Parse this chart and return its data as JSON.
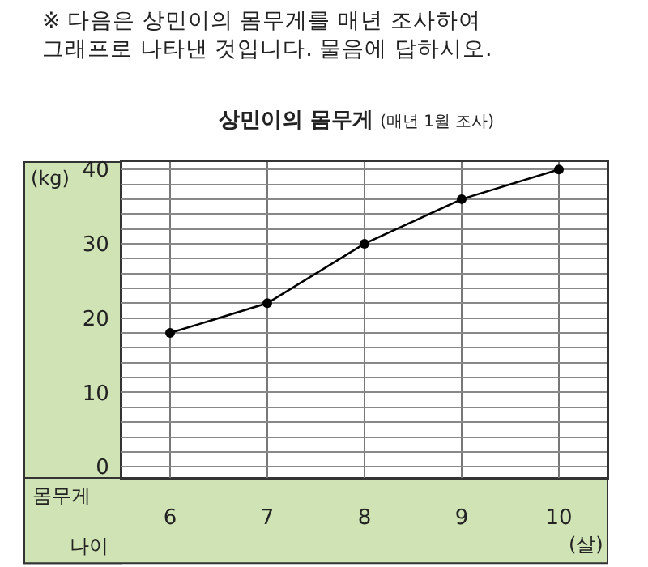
{
  "chart_data": {
    "type": "line",
    "title": "상민이의 몸무게",
    "subtitle": "(매년 1월 조사)",
    "xlabel": "나이",
    "ylabel": "몸무게",
    "annotations": [
      "※ 다음은 상민이의 몸무게를 매년 조사하여 그래프로 나타낸 것입니다. 물음에 답하시오.",
      "(kg)",
      "(살)"
    ],
    "categories": [
      "6",
      "7",
      "8",
      "9",
      "10"
    ],
    "series": [
      {
        "color": "#000000",
        "values": [
          18,
          22,
          30,
          36,
          40
        ]
      }
    ],
    "ylim": [
      -1.5,
      41
    ],
    "yticks": [
      0,
      {
        "value": 2,
        "label": null
      },
      {
        "value": 4,
        "label": null
      },
      {
        "value": 6,
        "label": null
      },
      {
        "value": 8,
        "label": null
      },
      10,
      {
        "value": 12,
        "label": null
      },
      {
        "value": 14,
        "label": null
      },
      {
        "value": 16,
        "label": null
      },
      {
        "value": 18,
        "label": null
      },
      20,
      {
        "value": 22,
        "label": null
      },
      {
        "value": 24,
        "label": null
      },
      {
        "value": 26,
        "label": null
      },
      {
        "value": 28,
        "label": null
      },
      30,
      {
        "value": 32,
        "label": null
      },
      {
        "value": 34,
        "label": null
      },
      {
        "value": 36,
        "label": null
      },
      {
        "value": 38,
        "label": null
      },
      40
    ],
    "grid": true,
    "marker": "circle",
    "line_style": "solid"
  }
}
